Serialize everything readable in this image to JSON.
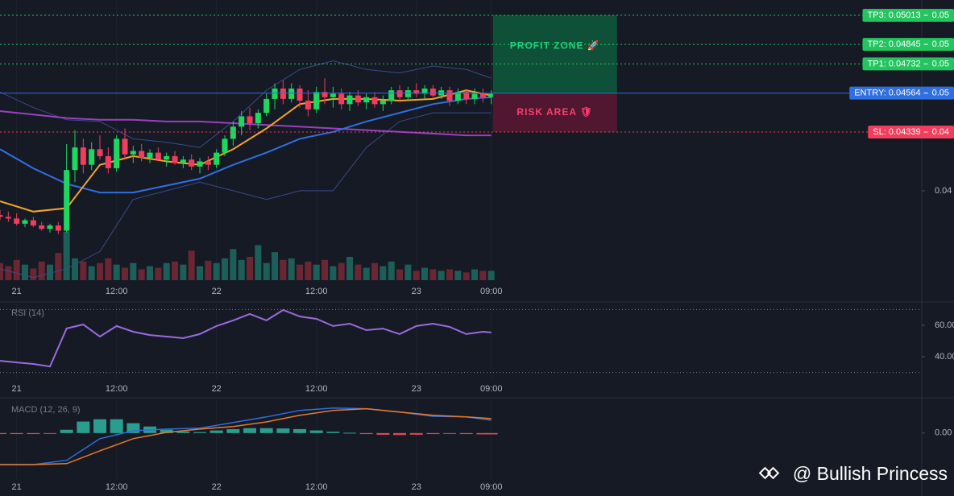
{
  "chart_data": [
    {
      "type": "candlestick",
      "x": [
        -2,
        -1,
        0,
        1,
        2,
        3,
        4,
        5,
        6,
        7,
        8,
        9,
        10,
        11,
        12,
        13,
        14,
        15,
        16,
        17,
        18,
        19,
        20,
        21,
        22,
        23,
        24,
        25,
        26,
        27,
        28,
        29,
        30,
        31,
        32,
        33,
        34,
        35,
        36,
        37,
        38,
        39,
        40,
        41,
        42,
        43,
        44,
        45,
        46,
        47,
        48,
        49,
        50,
        51,
        52,
        53,
        54,
        55,
        56,
        57
      ],
      "open": [
        0.0386,
        0.0385,
        0.0384,
        0.0381,
        0.0383,
        0.038,
        0.0378,
        0.038,
        0.0377,
        0.0412,
        0.0425,
        0.0415,
        0.0424,
        0.042,
        0.0413,
        0.043,
        0.0421,
        0.0423,
        0.0419,
        0.0422,
        0.0418,
        0.042,
        0.0416,
        0.0418,
        0.0414,
        0.0417,
        0.0415,
        0.0422,
        0.043,
        0.0437,
        0.0443,
        0.0439,
        0.0445,
        0.0453,
        0.0459,
        0.0453,
        0.0459,
        0.0452,
        0.0447,
        0.0457,
        0.0454,
        0.0456,
        0.045,
        0.0455,
        0.0451,
        0.0454,
        0.045,
        0.0452,
        0.0458,
        0.0454,
        0.0458,
        0.0456,
        0.0459,
        0.0455,
        0.0458,
        0.0452,
        0.0457,
        0.0453,
        0.0456,
        0.0454
      ],
      "high": [
        0.0389,
        0.0388,
        0.0387,
        0.0384,
        0.0385,
        0.0382,
        0.0381,
        0.0382,
        0.0427,
        0.0435,
        0.043,
        0.0428,
        0.0432,
        0.0425,
        0.0432,
        0.0436,
        0.0426,
        0.0427,
        0.0424,
        0.0425,
        0.0422,
        0.0423,
        0.042,
        0.0421,
        0.0419,
        0.042,
        0.0424,
        0.0432,
        0.044,
        0.0446,
        0.0448,
        0.0447,
        0.0456,
        0.0462,
        0.0464,
        0.0462,
        0.0461,
        0.0458,
        0.046,
        0.0465,
        0.046,
        0.0459,
        0.0457,
        0.0458,
        0.0456,
        0.0457,
        0.0455,
        0.046,
        0.0461,
        0.046,
        0.0462,
        0.0461,
        0.0461,
        0.046,
        0.046,
        0.0459,
        0.0458,
        0.0459,
        0.0459,
        0.0458
      ],
      "low": [
        0.0383,
        0.0382,
        0.038,
        0.0379,
        0.0379,
        0.0377,
        0.0376,
        0.0375,
        0.0376,
        0.0405,
        0.041,
        0.0412,
        0.0418,
        0.041,
        0.0411,
        0.0418,
        0.0416,
        0.0417,
        0.0416,
        0.0417,
        0.0414,
        0.0415,
        0.0413,
        0.0412,
        0.041,
        0.0412,
        0.0413,
        0.042,
        0.0426,
        0.0432,
        0.0435,
        0.0436,
        0.0443,
        0.0447,
        0.045,
        0.0451,
        0.0448,
        0.0443,
        0.0445,
        0.045,
        0.0448,
        0.0447,
        0.0446,
        0.0449,
        0.0447,
        0.0448,
        0.0446,
        0.045,
        0.0451,
        0.0452,
        0.0454,
        0.0453,
        0.0454,
        0.0453,
        0.0449,
        0.045,
        0.045,
        0.045,
        0.0451,
        0.045
      ],
      "close": [
        0.0385,
        0.0384,
        0.0381,
        0.0383,
        0.038,
        0.0378,
        0.038,
        0.0377,
        0.0412,
        0.0425,
        0.0415,
        0.0424,
        0.042,
        0.0413,
        0.043,
        0.0421,
        0.0423,
        0.0419,
        0.0422,
        0.0418,
        0.042,
        0.0416,
        0.0418,
        0.0414,
        0.0417,
        0.0415,
        0.0422,
        0.043,
        0.0437,
        0.0443,
        0.0439,
        0.0445,
        0.0453,
        0.0459,
        0.0453,
        0.0459,
        0.0452,
        0.0447,
        0.0457,
        0.0454,
        0.0456,
        0.045,
        0.0455,
        0.0451,
        0.0454,
        0.045,
        0.0452,
        0.0458,
        0.0454,
        0.0458,
        0.0456,
        0.0459,
        0.0455,
        0.0458,
        0.0452,
        0.0457,
        0.0453,
        0.0456,
        0.0454,
        0.0456
      ],
      "volume": [
        22,
        18,
        26,
        20,
        15,
        24,
        20,
        35,
        62,
        28,
        24,
        18,
        22,
        28,
        20,
        16,
        22,
        14,
        18,
        16,
        22,
        24,
        20,
        38,
        18,
        25,
        22,
        28,
        40,
        26,
        30,
        45,
        22,
        36,
        26,
        28,
        20,
        24,
        20,
        26,
        18,
        22,
        30,
        20,
        16,
        22,
        18,
        24,
        14,
        20,
        12,
        16,
        14,
        12,
        14,
        12,
        10,
        14,
        12,
        12
      ],
      "up_color": "#1ed760",
      "down_color": "#f23d5c",
      "volume_up_color": "#1c5f58",
      "volume_down_color": "#6b2633",
      "overlay_x": [
        -2,
        2,
        6,
        10,
        14,
        18,
        22,
        26,
        30,
        34,
        38,
        42,
        46,
        50,
        54,
        57
      ],
      "overlays": [
        {
          "color": "#3a4a8a",
          "values": [
            0.0457,
            0.0448,
            0.0441,
            0.044,
            0.043,
            0.0428,
            0.0425,
            0.044,
            0.0458,
            0.047,
            0.0475,
            0.047,
            0.0468,
            0.0472,
            0.047,
            0.0465
          ]
        },
        {
          "color": "#3a4a8a",
          "values": [
            0.0355,
            0.035,
            0.0355,
            0.0365,
            0.0395,
            0.04,
            0.0405,
            0.04,
            0.0395,
            0.04,
            0.04,
            0.0425,
            0.044,
            0.0445,
            0.0445,
            0.0445
          ]
        },
        {
          "color": "#9b3fc0",
          "values": [
            0.0446,
            0.0444,
            0.0442,
            0.0441,
            0.0441,
            0.044,
            0.044,
            0.0439,
            0.0438,
            0.0437,
            0.0436,
            0.0435,
            0.0434,
            0.0433,
            0.0432,
            0.0432
          ]
        },
        {
          "color": "#2f6fe0",
          "values": [
            0.0424,
            0.0413,
            0.0404,
            0.0399,
            0.0399,
            0.0403,
            0.0407,
            0.0415,
            0.0422,
            0.043,
            0.0434,
            0.044,
            0.0445,
            0.045,
            0.0453,
            0.0454
          ]
        },
        {
          "color": "#f5a623",
          "values": [
            0.0394,
            0.0388,
            0.039,
            0.0415,
            0.042,
            0.0417,
            0.0415,
            0.0424,
            0.0436,
            0.045,
            0.0453,
            0.0453,
            0.0452,
            0.0453,
            0.0458,
            0.0455
          ]
        }
      ],
      "zones": [
        {
          "label": "PROFIT ZONE 🚀",
          "from": 0.04564,
          "to": 0.05013,
          "start": 57.2,
          "end": 72.1,
          "color": "#0d5a3c",
          "text_color": "#22d37a"
        },
        {
          "label": "RISK AREA 🛡",
          "from": 0.04339,
          "to": 0.04564,
          "start": 57.2,
          "end": 72.1,
          "color": "#5c1834",
          "text_color": "#ff3d6e"
        }
      ],
      "levels": [
        {
          "label": "TP3: 0.05013",
          "value": 0.05013,
          "scale_label": "0.05",
          "color": "#22c55e",
          "dashed": true
        },
        {
          "label": "TP2: 0.04845",
          "value": 0.04845,
          "scale_label": "0.05",
          "color": "#22c55e",
          "dashed": true
        },
        {
          "label": "TP1: 0.04732",
          "value": 0.04732,
          "scale_label": "0.05",
          "color": "#22c55e",
          "dashed": true
        },
        {
          "label": "ENTRY: 0.04564",
          "value": 0.04564,
          "scale_label": "0.05",
          "color": "#2f6fe0",
          "dashed": false
        },
        {
          "label": "SL: 0.04339",
          "value": 0.04339,
          "scale_label": "0.04",
          "color": "#f23d5c",
          "dashed": true
        }
      ],
      "xlim": [
        -2,
        108.7
      ],
      "ylim": [
        0.03484,
        0.05101
      ],
      "yticks": [
        0.04
      ],
      "xticks": [
        {
          "value": 0,
          "label": "21"
        },
        {
          "value": 12,
          "label": "12:00"
        },
        {
          "value": 24,
          "label": "22"
        },
        {
          "value": 36,
          "label": "12:00"
        },
        {
          "value": 48,
          "label": "23"
        },
        {
          "value": 57,
          "label": "09:00"
        }
      ]
    },
    {
      "type": "line",
      "title": "RSI (14)",
      "x": [
        -2,
        0,
        2,
        4,
        6,
        8,
        10,
        12,
        14,
        16,
        18,
        20,
        22,
        24,
        26,
        28,
        30,
        32,
        34,
        36,
        38,
        40,
        42,
        44,
        46,
        48,
        50,
        52,
        54,
        56,
        57
      ],
      "values": [
        37.4,
        36.4,
        35.4,
        33.8,
        58.0,
        60.5,
        52.8,
        59.5,
        55.9,
        53.8,
        52.8,
        51.8,
        54.4,
        59.5,
        63.1,
        67.2,
        63.1,
        69.7,
        65.6,
        64.1,
        59.5,
        61.0,
        56.9,
        57.9,
        54.4,
        59.5,
        61.0,
        59.0,
        54.4,
        55.9,
        55.4
      ],
      "color": "#9c6ade",
      "levels": [
        70,
        30
      ],
      "xlim": [
        -2,
        108.7
      ],
      "ylim": [
        26.2,
        73.8
      ],
      "yticks": [
        {
          "value": 60,
          "label": "60.00"
        },
        {
          "value": 40,
          "label": "40.00"
        }
      ],
      "xticks": [
        {
          "value": 0,
          "label": "21"
        },
        {
          "value": 12,
          "label": "12:00"
        },
        {
          "value": 24,
          "label": "22"
        },
        {
          "value": 36,
          "label": "12:00"
        },
        {
          "value": 48,
          "label": "23"
        },
        {
          "value": 57,
          "label": "09:00"
        }
      ]
    },
    {
      "type": "macd",
      "title": "MACD (12, 26, 9)",
      "x": [
        -2,
        2,
        6,
        10,
        14,
        18,
        22,
        26,
        30,
        34,
        38,
        42,
        46,
        50,
        54,
        57
      ],
      "macd": {
        "color": "#2f6fe0",
        "values": [
          -0.00096,
          -0.00096,
          -0.00083,
          -0.00017,
          7e-05,
          0.00012,
          0.00015,
          0.00032,
          0.00049,
          0.00069,
          0.00076,
          0.00074,
          0.00064,
          0.00051,
          0.00049,
          0.00039
        ]
      },
      "signal": {
        "color": "#e8792b",
        "values": [
          -0.00096,
          -0.00096,
          -0.00093,
          -0.00054,
          -0.00017,
          2e-05,
          0.00012,
          0.0002,
          0.00034,
          0.00054,
          0.00069,
          0.00074,
          0.00064,
          0.00054,
          0.00049,
          0.00044
        ]
      },
      "histogram": {
        "x": [
          -2,
          0,
          2,
          4,
          6,
          8,
          10,
          12,
          14,
          16,
          18,
          20,
          22,
          24,
          26,
          28,
          30,
          32,
          34,
          36,
          38,
          40,
          42,
          44,
          46,
          48,
          50,
          52,
          54,
          56,
          57
        ],
        "values": [
          -3e-05,
          -3e-05,
          -3e-05,
          -2e-05,
          0.0001,
          0.00035,
          0.00042,
          0.00042,
          0.0003,
          0.0002,
          0.0001,
          5e-05,
          3e-05,
          8e-05,
          0.00012,
          0.00015,
          0.00015,
          0.00014,
          0.00012,
          8e-05,
          4e-05,
          1e-05,
          -3e-05,
          -5e-05,
          -6e-05,
          -5e-05,
          -3e-05,
          -2e-05,
          -3e-05,
          -4e-05,
          -4e-05
        ],
        "up_color": "#2a9d8f",
        "down_color": "#e5484d"
      },
      "xlim": [
        -2,
        108.7
      ],
      "ylim": [
        -0.0014,
        0.001
      ],
      "yticks": [
        {
          "value": 0,
          "label": "0.00"
        }
      ],
      "xticks": [
        {
          "value": 0,
          "label": "21"
        },
        {
          "value": 12,
          "label": "12:00"
        },
        {
          "value": 24,
          "label": "22"
        },
        {
          "value": 36,
          "label": "12:00"
        },
        {
          "value": 48,
          "label": "23"
        },
        {
          "value": 57,
          "label": "09:00"
        }
      ]
    }
  ],
  "watermark": "@ Bullish Princess"
}
